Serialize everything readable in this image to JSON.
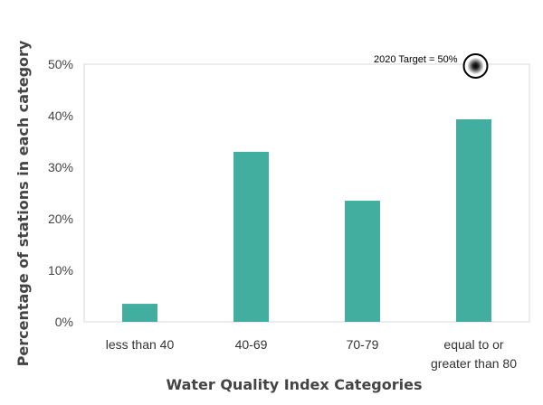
{
  "chart_data": {
    "type": "bar",
    "categories": [
      "less than 40",
      "40-69",
      "70-79",
      "equal to or greater than 80"
    ],
    "category_lines": [
      [
        "less than 40"
      ],
      [
        "40-69"
      ],
      [
        "70-79"
      ],
      [
        "equal to or",
        "greater than 80"
      ]
    ],
    "values": [
      3.5,
      33,
      23.5,
      39.3
    ],
    "xlabel": "Water Quality Index Categories",
    "ylabel": "Percentage of stations in each category",
    "ylim": [
      0,
      50
    ],
    "yticks": [
      0,
      10,
      20,
      30,
      40,
      50
    ],
    "ytick_labels": [
      "0%",
      "10%",
      "20%",
      "30%",
      "40%",
      "50%"
    ],
    "grid": false,
    "bar_color": "#42ae9f",
    "target": {
      "label": "2020 Target = 50%",
      "value": 50
    }
  }
}
